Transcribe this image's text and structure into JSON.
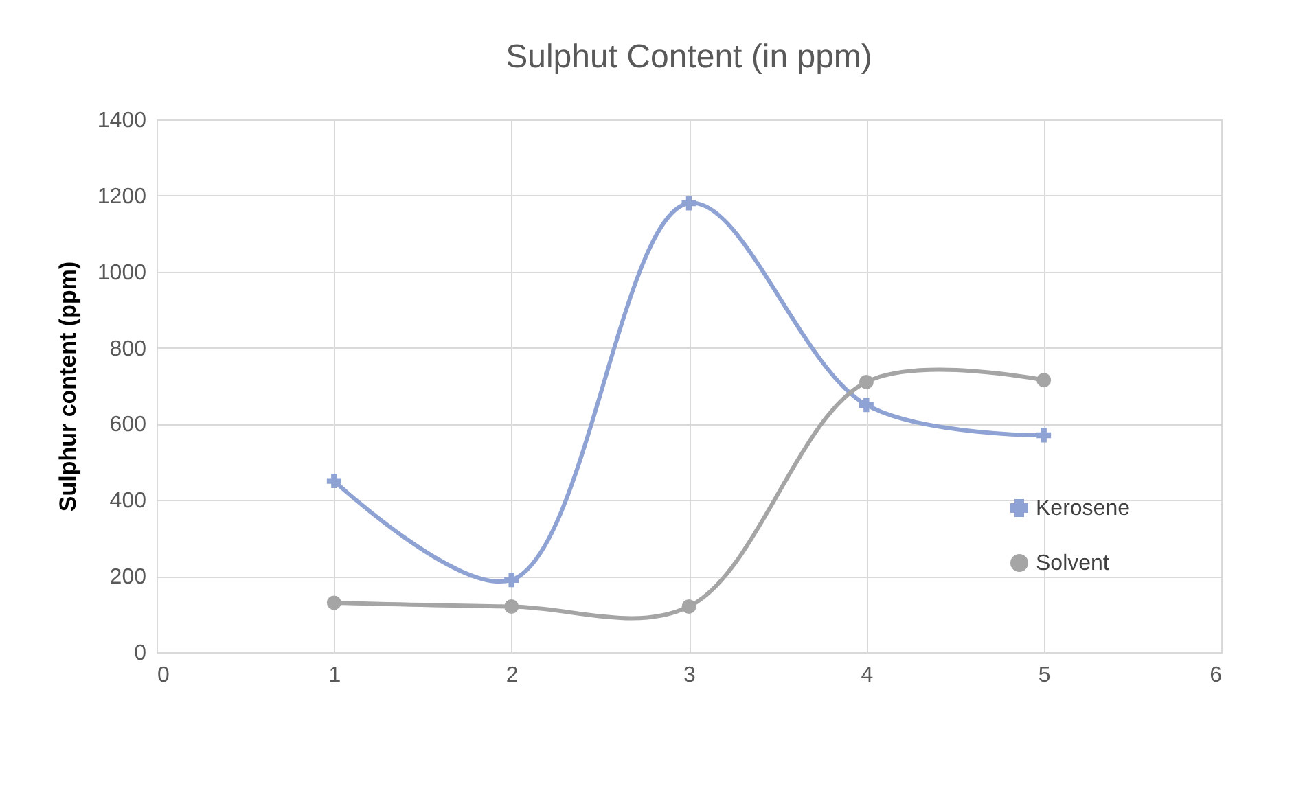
{
  "chart_data": {
    "type": "line",
    "title": "Sulphut Content (in ppm)",
    "ylabel": "Sulphur content (ppm)",
    "x": [
      1,
      2,
      3,
      4,
      5
    ],
    "series": [
      {
        "name": "Kerosene",
        "color": "#8fa2d4",
        "marker": "cross",
        "values": [
          450,
          190,
          1180,
          650,
          570
        ]
      },
      {
        "name": "Solvent",
        "color": "#a5a5a5",
        "marker": "circle",
        "values": [
          130,
          120,
          120,
          710,
          715
        ]
      }
    ],
    "xlim": [
      0,
      6
    ],
    "xticks": [
      0,
      1,
      2,
      3,
      4,
      5,
      6
    ],
    "ylim": [
      0,
      1400
    ],
    "yticks": [
      0,
      200,
      400,
      600,
      800,
      1000,
      1200,
      1400
    ],
    "grid": true,
    "legend": "right",
    "line_style": "solid"
  }
}
